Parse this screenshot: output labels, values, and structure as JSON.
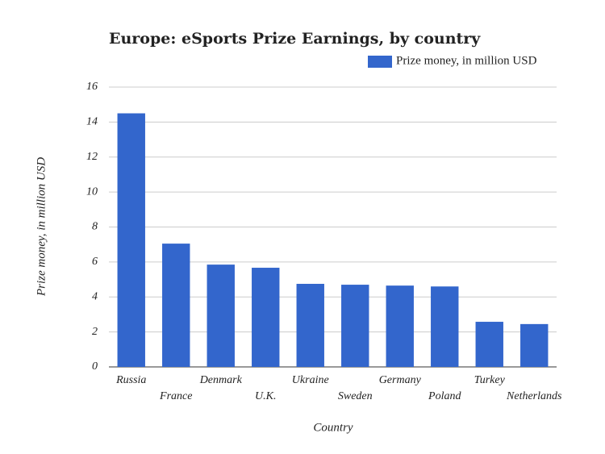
{
  "chart_data": {
    "type": "bar",
    "title": "Europe: eSports Prize Earnings, by country",
    "x_label": "Country",
    "y_label": "Prize money, in million USD",
    "categories": [
      "Russia",
      "France",
      "Denmark",
      "U.K.",
      "Ukraine",
      "Sweden",
      "Germany",
      "Poland",
      "Turkey",
      "Netherlands"
    ],
    "series": [
      {
        "name": "Prize money, in million USD",
        "color": "#3366cc",
        "values": [
          14.5,
          7.05,
          5.85,
          5.67,
          4.75,
          4.7,
          4.65,
          4.6,
          2.58,
          2.45
        ]
      }
    ],
    "ylim": [
      0,
      16
    ],
    "yticks": [
      0,
      2,
      4,
      6,
      8,
      10,
      12,
      14,
      16
    ],
    "grid": true,
    "legend": "top-right"
  }
}
